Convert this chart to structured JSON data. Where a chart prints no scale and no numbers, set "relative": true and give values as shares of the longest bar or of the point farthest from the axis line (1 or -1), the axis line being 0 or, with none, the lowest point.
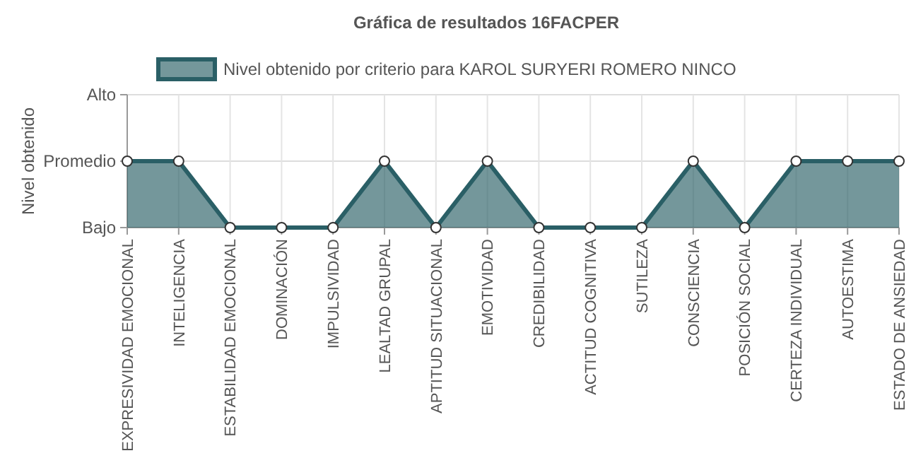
{
  "chart_data": {
    "type": "area",
    "title": "Gráfica de resultados 16FACPER",
    "ylabel": "Nivel obtenido",
    "categories": [
      "EXPRESIVIDAD EMOCIONAL",
      "INTELIGENCIA",
      "ESTABILIDAD EMOCIONAL",
      "DOMINACIÓN",
      "IMPULSIVIDAD",
      "LEALTAD GRUPAL",
      "APTITUD SITUACIONAL",
      "EMOTIVIDAD",
      "CREDIBILIDAD",
      "ACTITUD COGNITIVA",
      "SUTILEZA",
      "CONSCIENCIA",
      "POSICIÓN SOCIAL",
      "CERTEZA INDIVIDUAL",
      "AUTOESTIMA",
      "ESTADO DE ANSIEDAD"
    ],
    "series": [
      {
        "name": "Nivel obtenido por criterio para KAROL SURYERI ROMERO NINCO",
        "color": "#2a5f66",
        "values": [
          1,
          1,
          0,
          0,
          0,
          1,
          0,
          1,
          0,
          0,
          0,
          1,
          0,
          1,
          1,
          1
        ]
      }
    ],
    "relative": true,
    "annotations": [
      "Bajo",
      "Promedio",
      "Alto"
    ],
    "grid": true,
    "legend": "top",
    "marker": "circle"
  }
}
